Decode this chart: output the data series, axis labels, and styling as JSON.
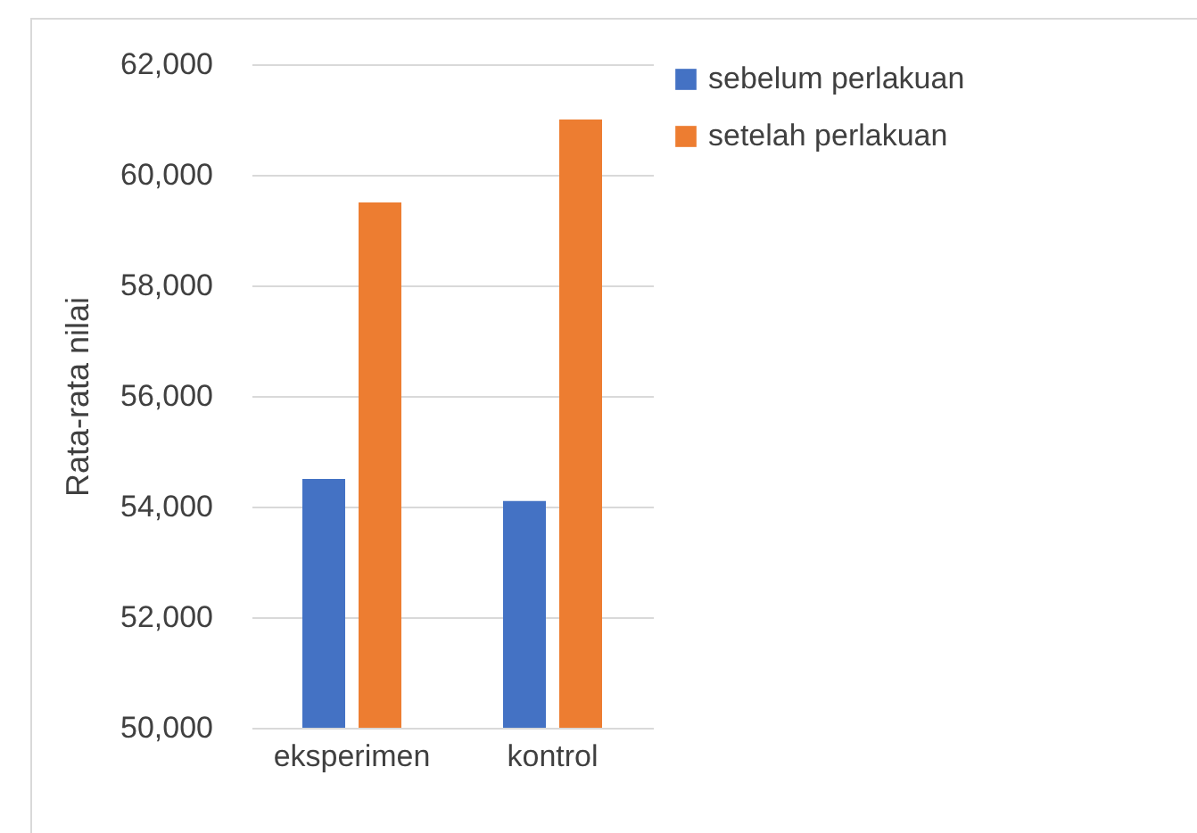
{
  "chart_data": {
    "type": "bar",
    "ylabel": "Rata-rata nilai",
    "categories": [
      "eksperimen",
      "kontrol"
    ],
    "series": [
      {
        "name": "sebelum perlakuan",
        "color": "#4472c4",
        "values": [
          54500,
          54100
        ]
      },
      {
        "name": "setelah perlakuan",
        "color": "#ed7d31",
        "values": [
          59500,
          61000
        ]
      }
    ],
    "ylim": [
      50000,
      62000
    ],
    "yticks": [
      {
        "value": 50000,
        "label": "50,000"
      },
      {
        "value": 52000,
        "label": "52,000"
      },
      {
        "value": 54000,
        "label": "54,000"
      },
      {
        "value": 56000,
        "label": "56,000"
      },
      {
        "value": 58000,
        "label": "58,000"
      },
      {
        "value": 60000,
        "label": "60,000"
      },
      {
        "value": 62000,
        "label": "62,000"
      }
    ],
    "grid": "y",
    "legend": "right"
  }
}
